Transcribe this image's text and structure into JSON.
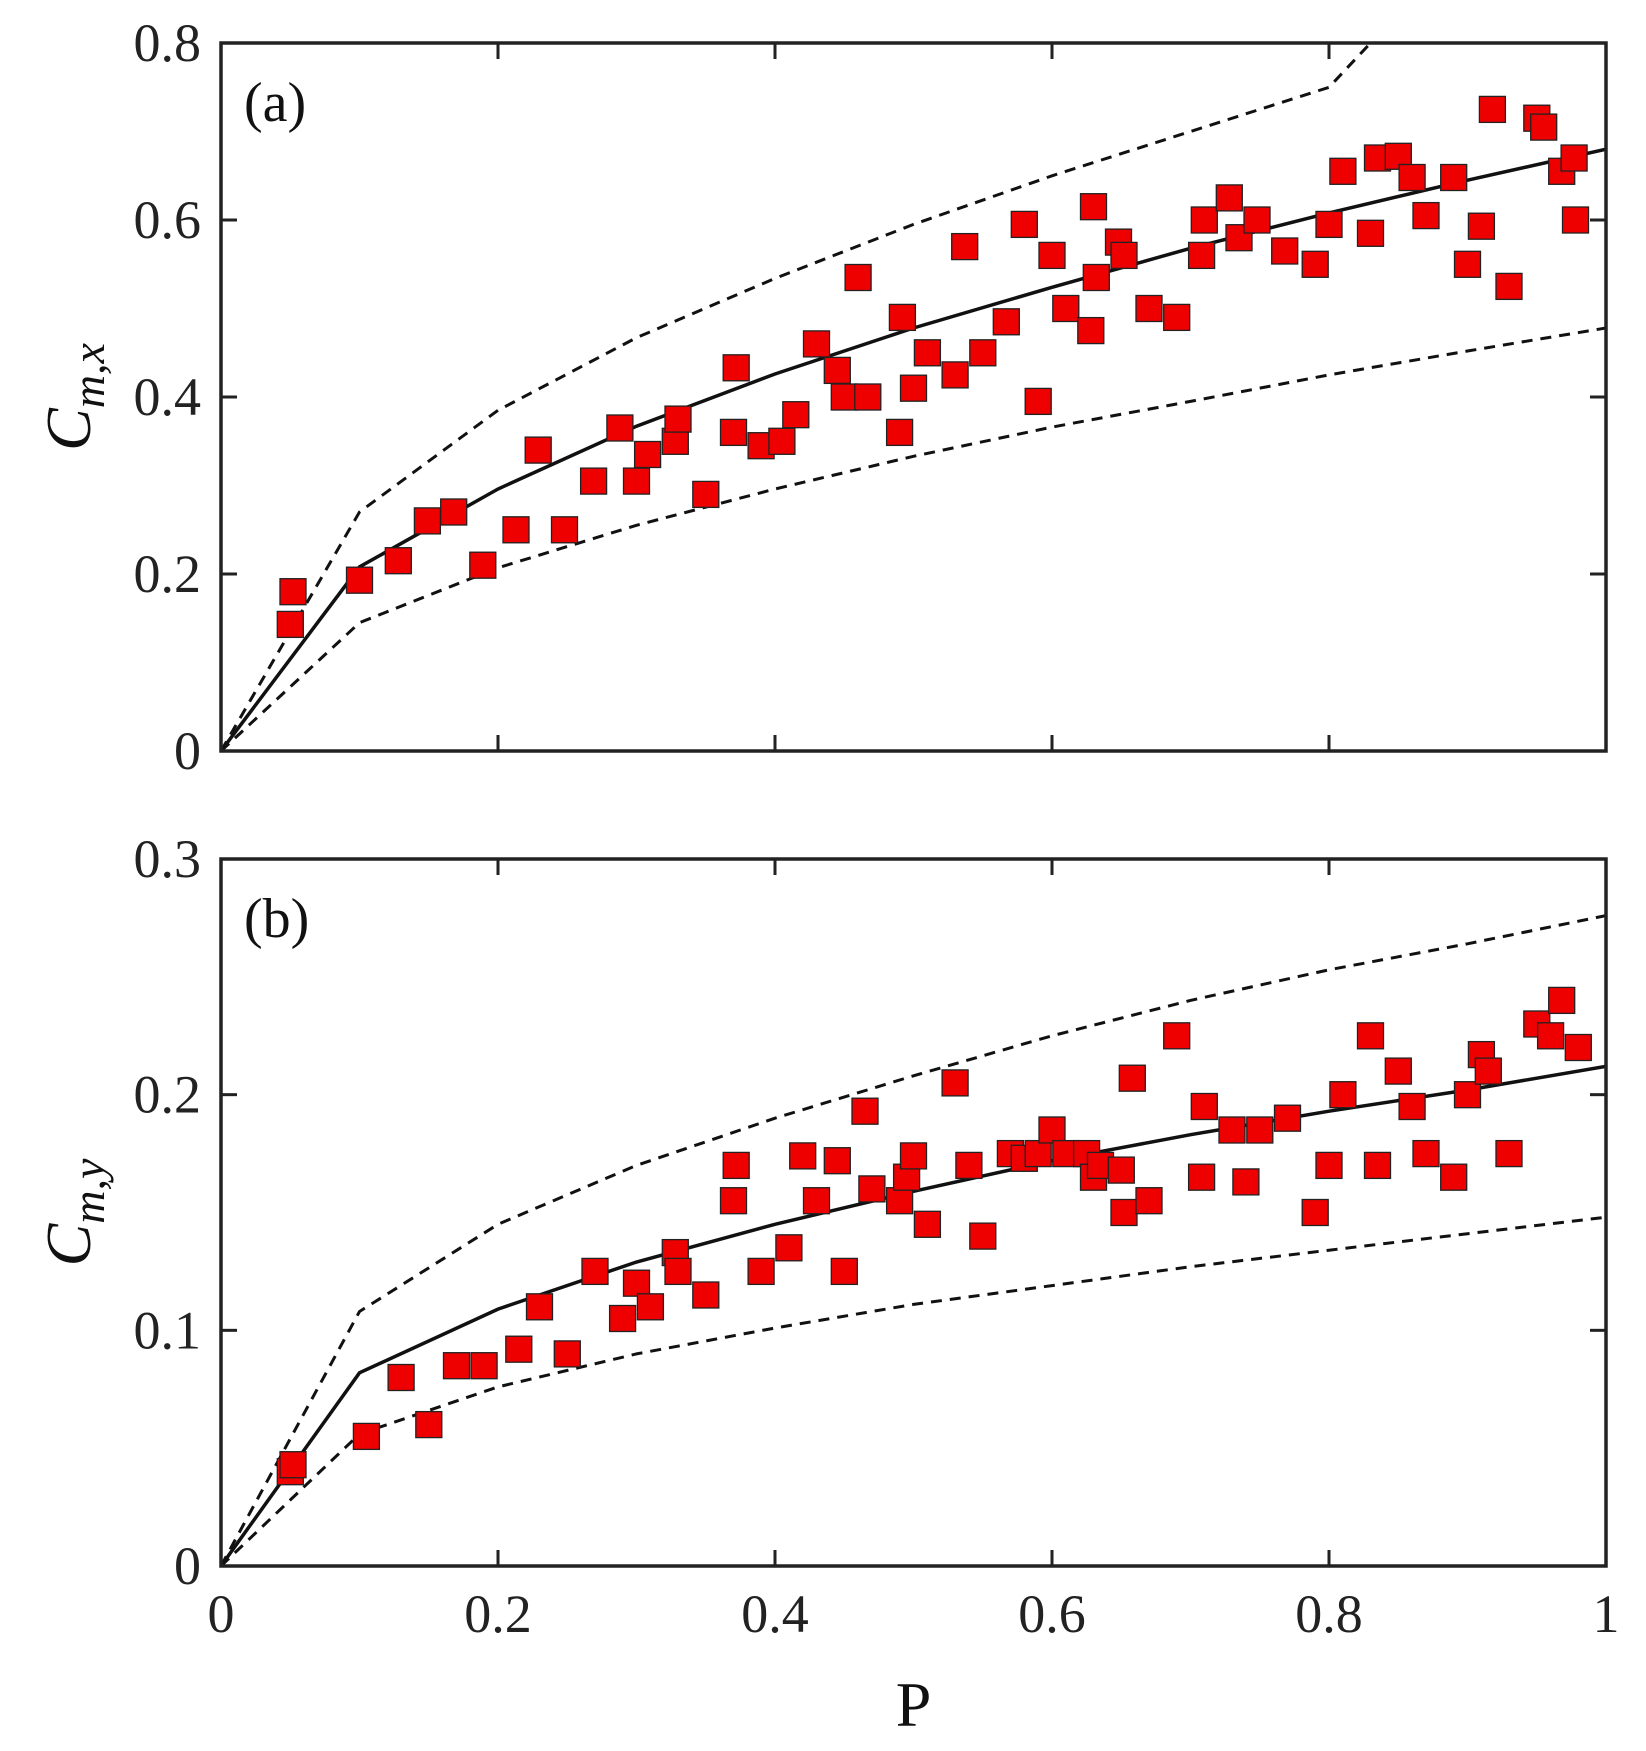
{
  "chart_data": [
    {
      "type": "scatter",
      "panel_label": "(a)",
      "ylabel": "C_{m,x}",
      "ylabel_main": "C",
      "ylabel_sub": "m,x",
      "xlabel": "",
      "xlim": [
        0,
        1
      ],
      "ylim": [
        0,
        0.8
      ],
      "xticks": [
        0,
        0.2,
        0.4,
        0.6,
        0.8,
        1
      ],
      "xtick_labels": [
        "0",
        "0.2",
        "0.4",
        "0.6",
        "0.8",
        "1"
      ],
      "yticks": [
        0,
        0.2,
        0.4,
        0.6,
        0.8
      ],
      "ytick_labels": [
        "0",
        "0.2",
        "0.4",
        "0.6",
        "0.8"
      ],
      "show_xtick_labels": false,
      "marker_color": "#ee0000",
      "series": [
        {
          "name": "data",
          "style": "marker",
          "x": [
            0.05,
            0.052,
            0.1,
            0.128,
            0.149,
            0.168,
            0.189,
            0.213,
            0.229,
            0.248,
            0.269,
            0.288,
            0.3,
            0.308,
            0.328,
            0.33,
            0.35,
            0.37,
            0.372,
            0.39,
            0.405,
            0.415,
            0.43,
            0.445,
            0.45,
            0.46,
            0.467,
            0.49,
            0.492,
            0.5,
            0.51,
            0.53,
            0.537,
            0.55,
            0.567,
            0.58,
            0.59,
            0.6,
            0.61,
            0.628,
            0.63,
            0.632,
            0.648,
            0.652,
            0.67,
            0.69,
            0.708,
            0.71,
            0.728,
            0.735,
            0.748,
            0.768,
            0.79,
            0.8,
            0.81,
            0.83,
            0.835,
            0.85,
            0.86,
            0.87,
            0.89,
            0.9,
            0.91,
            0.918,
            0.93,
            0.95,
            0.955,
            0.968,
            0.977,
            0.978
          ],
          "y": [
            0.143,
            0.18,
            0.193,
            0.215,
            0.26,
            0.27,
            0.21,
            0.25,
            0.34,
            0.25,
            0.305,
            0.365,
            0.305,
            0.335,
            0.35,
            0.375,
            0.29,
            0.36,
            0.433,
            0.345,
            0.35,
            0.38,
            0.46,
            0.43,
            0.4,
            0.535,
            0.4,
            0.36,
            0.49,
            0.41,
            0.45,
            0.425,
            0.57,
            0.45,
            0.485,
            0.595,
            0.395,
            0.56,
            0.5,
            0.475,
            0.615,
            0.535,
            0.575,
            0.56,
            0.5,
            0.49,
            0.56,
            0.6,
            0.625,
            0.58,
            0.6,
            0.565,
            0.55,
            0.595,
            0.655,
            0.585,
            0.67,
            0.672,
            0.648,
            0.605,
            0.648,
            0.55,
            0.593,
            0.725,
            0.525,
            0.715,
            0.705,
            0.655,
            0.67,
            0.6
          ]
        },
        {
          "name": "fit",
          "style": "solid",
          "x": [
            0,
            0.1,
            0.2,
            0.3,
            0.4,
            0.5,
            0.6,
            0.7,
            0.8,
            0.9,
            1.0
          ],
          "y": [
            0,
            0.208,
            0.296,
            0.367,
            0.426,
            0.478,
            0.524,
            0.568,
            0.608,
            0.645,
            0.68
          ]
        },
        {
          "name": "upper bound",
          "style": "dashed",
          "x": [
            0,
            0.1,
            0.2,
            0.3,
            0.4,
            0.5,
            0.6,
            0.7,
            0.8,
            0.83
          ],
          "y": [
            0,
            0.27,
            0.385,
            0.467,
            0.534,
            0.595,
            0.65,
            0.7,
            0.75,
            0.8
          ]
        },
        {
          "name": "lower bound",
          "style": "dashed",
          "x": [
            0,
            0.1,
            0.2,
            0.3,
            0.4,
            0.5,
            0.6,
            0.7,
            0.8,
            0.9,
            1.0
          ],
          "y": [
            0,
            0.145,
            0.207,
            0.255,
            0.296,
            0.333,
            0.366,
            0.395,
            0.425,
            0.452,
            0.478
          ]
        }
      ]
    },
    {
      "type": "scatter",
      "panel_label": "(b)",
      "ylabel": "C_{m,y}",
      "ylabel_main": "C",
      "ylabel_sub": "m,y",
      "xlabel": "P",
      "xlim": [
        0,
        1
      ],
      "ylim": [
        0,
        0.3
      ],
      "xticks": [
        0,
        0.2,
        0.4,
        0.6,
        0.8,
        1
      ],
      "xtick_labels": [
        "0",
        "0.2",
        "0.4",
        "0.6",
        "0.8",
        "1"
      ],
      "yticks": [
        0,
        0.1,
        0.2,
        0.3
      ],
      "ytick_labels": [
        "0",
        "0.1",
        "0.2",
        "0.3"
      ],
      "show_xtick_labels": true,
      "marker_color": "#ee0000",
      "series": [
        {
          "name": "data",
          "style": "marker",
          "x": [
            0.05,
            0.052,
            0.105,
            0.13,
            0.15,
            0.17,
            0.19,
            0.215,
            0.23,
            0.25,
            0.27,
            0.29,
            0.3,
            0.31,
            0.328,
            0.33,
            0.35,
            0.37,
            0.372,
            0.39,
            0.41,
            0.42,
            0.43,
            0.445,
            0.45,
            0.465,
            0.47,
            0.49,
            0.495,
            0.5,
            0.51,
            0.53,
            0.54,
            0.55,
            0.57,
            0.58,
            0.59,
            0.6,
            0.61,
            0.625,
            0.63,
            0.635,
            0.65,
            0.652,
            0.658,
            0.67,
            0.69,
            0.708,
            0.71,
            0.73,
            0.74,
            0.75,
            0.77,
            0.79,
            0.8,
            0.81,
            0.83,
            0.835,
            0.85,
            0.86,
            0.87,
            0.89,
            0.9,
            0.91,
            0.915,
            0.93,
            0.95,
            0.96,
            0.968,
            0.98
          ],
          "y": [
            0.04,
            0.043,
            0.055,
            0.08,
            0.06,
            0.085,
            0.085,
            0.092,
            0.11,
            0.09,
            0.125,
            0.105,
            0.12,
            0.11,
            0.133,
            0.125,
            0.115,
            0.155,
            0.17,
            0.125,
            0.135,
            0.174,
            0.155,
            0.172,
            0.125,
            0.193,
            0.16,
            0.155,
            0.165,
            0.174,
            0.145,
            0.205,
            0.17,
            0.14,
            0.175,
            0.173,
            0.175,
            0.185,
            0.175,
            0.175,
            0.165,
            0.17,
            0.168,
            0.15,
            0.207,
            0.155,
            0.225,
            0.165,
            0.195,
            0.185,
            0.163,
            0.185,
            0.19,
            0.15,
            0.17,
            0.2,
            0.225,
            0.17,
            0.21,
            0.195,
            0.175,
            0.165,
            0.2,
            0.217,
            0.21,
            0.175,
            0.23,
            0.225,
            0.24,
            0.22
          ]
        },
        {
          "name": "fit",
          "style": "solid",
          "x": [
            0,
            0.1,
            0.2,
            0.3,
            0.4,
            0.5,
            0.6,
            0.7,
            0.8,
            0.9,
            1.0
          ],
          "y": [
            0,
            0.082,
            0.109,
            0.129,
            0.145,
            0.159,
            0.172,
            0.183,
            0.193,
            0.202,
            0.212
          ]
        },
        {
          "name": "upper bound",
          "style": "dashed",
          "x": [
            0,
            0.1,
            0.2,
            0.3,
            0.4,
            0.5,
            0.6,
            0.7,
            0.8,
            0.9,
            1.0
          ],
          "y": [
            0,
            0.108,
            0.145,
            0.17,
            0.19,
            0.208,
            0.225,
            0.24,
            0.253,
            0.264,
            0.276
          ]
        },
        {
          "name": "lower bound",
          "style": "dashed",
          "x": [
            0,
            0.1,
            0.2,
            0.3,
            0.4,
            0.5,
            0.6,
            0.7,
            0.8,
            0.9,
            1.0
          ],
          "y": [
            0,
            0.056,
            0.076,
            0.09,
            0.101,
            0.111,
            0.119,
            0.127,
            0.134,
            0.141,
            0.148
          ]
        }
      ]
    }
  ]
}
